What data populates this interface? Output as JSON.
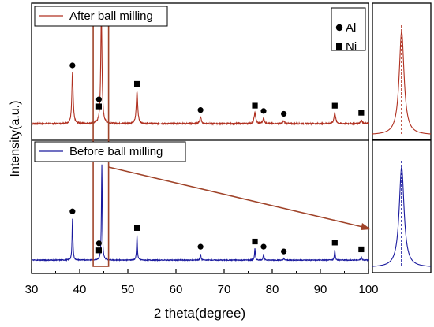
{
  "chart_data": {
    "type": "line",
    "xlabel": "2 theta(degree)",
    "ylabel": "Intensity(a.u.)",
    "xlim": [
      30,
      100
    ],
    "xticks": [
      30,
      40,
      50,
      60,
      70,
      80,
      90,
      100
    ],
    "grid": false,
    "legend": {
      "symbols": [
        {
          "label": "Al",
          "marker": "circle"
        },
        {
          "label": "Ni",
          "marker": "square"
        }
      ],
      "placement": "top-right"
    },
    "series": [
      {
        "name": "After ball milling",
        "color": "#b03020",
        "baseline": 0.08,
        "noise": 0.012,
        "peaks": [
          {
            "x": 38.5,
            "h": 0.47,
            "w": 0.16
          },
          {
            "x": 44.5,
            "h": 1.0,
            "w": 0.16
          },
          {
            "x": 51.9,
            "h": 0.3,
            "w": 0.18
          },
          {
            "x": 65.1,
            "h": 0.06,
            "w": 0.2
          },
          {
            "x": 76.4,
            "h": 0.1,
            "w": 0.2
          },
          {
            "x": 78.2,
            "h": 0.05,
            "w": 0.2
          },
          {
            "x": 82.4,
            "h": 0.025,
            "w": 0.2
          },
          {
            "x": 93.0,
            "h": 0.1,
            "w": 0.2
          },
          {
            "x": 98.5,
            "h": 0.035,
            "w": 0.2
          }
        ],
        "markers": [
          {
            "x": 38.5,
            "symbol": "Al"
          },
          {
            "x": 44.0,
            "symbol": "Ni"
          },
          {
            "x": 44.0,
            "symbol": "Al"
          },
          {
            "x": 51.9,
            "symbol": "Ni"
          },
          {
            "x": 65.1,
            "symbol": "Al"
          },
          {
            "x": 76.4,
            "symbol": "Ni"
          },
          {
            "x": 78.2,
            "symbol": "Al"
          },
          {
            "x": 82.4,
            "symbol": "Al"
          },
          {
            "x": 93.0,
            "symbol": "Ni"
          },
          {
            "x": 98.5,
            "symbol": "Ni"
          }
        ]
      },
      {
        "name": "Before ball milling",
        "color": "#1a1a9e",
        "baseline": 0.06,
        "noise": 0.008,
        "peaks": [
          {
            "x": 38.5,
            "h": 0.4,
            "w": 0.1
          },
          {
            "x": 44.6,
            "h": 0.92,
            "w": 0.1
          },
          {
            "x": 51.9,
            "h": 0.24,
            "w": 0.1
          },
          {
            "x": 65.1,
            "h": 0.06,
            "w": 0.1
          },
          {
            "x": 76.4,
            "h": 0.11,
            "w": 0.1
          },
          {
            "x": 78.2,
            "h": 0.06,
            "w": 0.1
          },
          {
            "x": 82.4,
            "h": 0.015,
            "w": 0.1
          },
          {
            "x": 93.0,
            "h": 0.1,
            "w": 0.1
          },
          {
            "x": 98.5,
            "h": 0.035,
            "w": 0.1
          }
        ],
        "markers": [
          {
            "x": 38.5,
            "symbol": "Al"
          },
          {
            "x": 44.0,
            "symbol": "Ni"
          },
          {
            "x": 44.0,
            "symbol": "Al"
          },
          {
            "x": 51.9,
            "symbol": "Ni"
          },
          {
            "x": 65.1,
            "symbol": "Al"
          },
          {
            "x": 76.4,
            "symbol": "Ni"
          },
          {
            "x": 78.2,
            "symbol": "Al"
          },
          {
            "x": 82.4,
            "symbol": "Al"
          },
          {
            "x": 93.0,
            "symbol": "Ni"
          },
          {
            "x": 98.5,
            "symbol": "Ni"
          }
        ]
      }
    ],
    "highlight": {
      "x_range": [
        42.8,
        46.0
      ],
      "color": "#a0442a",
      "zoomed_peak": 44.5
    }
  }
}
